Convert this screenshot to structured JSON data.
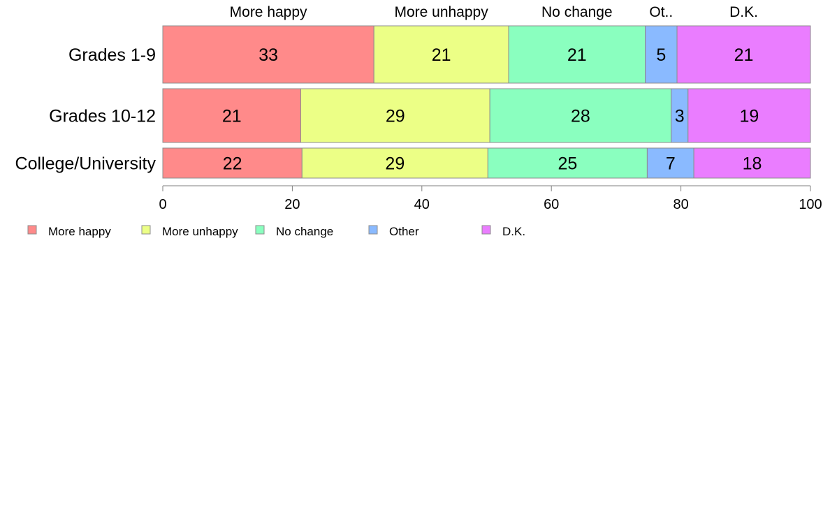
{
  "chart_data": {
    "type": "bar",
    "orientation": "horizontal",
    "stacked": true,
    "categories": [
      "Grades 1-9",
      "Grades 10-12",
      "College/University"
    ],
    "top_labels": [
      "More happy",
      "More unhappy",
      "No change",
      "Ot..",
      "D.K."
    ],
    "series": [
      {
        "name": "More happy",
        "color": "#ff8a8a",
        "values": [
          33,
          21,
          22
        ]
      },
      {
        "name": "More unhappy",
        "color": "#ecff86",
        "values": [
          21,
          29,
          29
        ]
      },
      {
        "name": "No change",
        "color": "#8affbf",
        "values": [
          21,
          28,
          25
        ]
      },
      {
        "name": "Other",
        "color": "#8abaff",
        "values": [
          5,
          3,
          7
        ]
      },
      {
        "name": "D.K.",
        "color": "#ea7dff",
        "values": [
          21,
          19,
          18
        ]
      }
    ],
    "segments": [
      [
        32.6,
        20.8,
        21.1,
        4.9,
        20.6
      ],
      [
        21.3,
        29.2,
        28.0,
        2.6,
        18.9
      ],
      [
        21.5,
        28.7,
        24.6,
        7.2,
        18.0
      ]
    ],
    "xlim": [
      0,
      100
    ],
    "xticks": [
      0,
      20,
      40,
      60,
      80,
      100
    ],
    "legend_position": "bottom-left",
    "grid": false
  }
}
